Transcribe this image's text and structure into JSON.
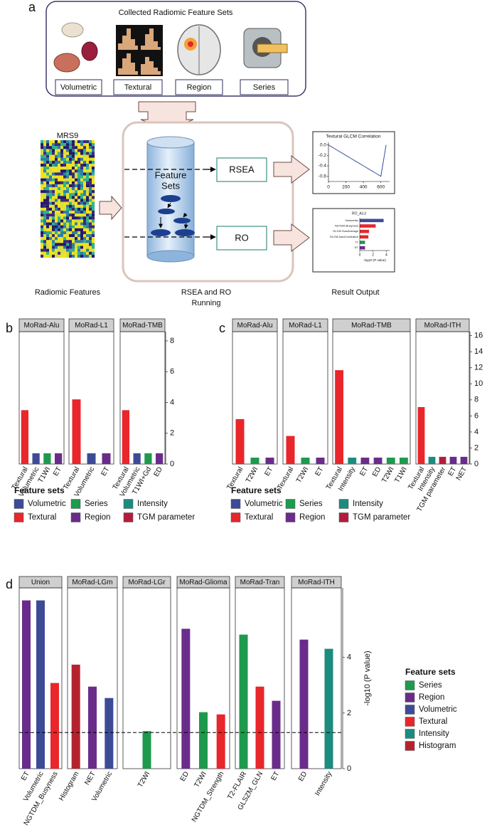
{
  "panel_a": {
    "label": "a",
    "title": "Collected Radiomic Feature Sets",
    "feature_sets": [
      "Volumetric",
      "Textural",
      "Region",
      "Series"
    ],
    "heatmap_title": "MRS9",
    "cylinder_label": [
      "Feature",
      "Sets"
    ],
    "methods": [
      "RSEA",
      "RO"
    ],
    "captions": {
      "features": "Radiomic Features",
      "running": [
        "RSEA and RO",
        "Running"
      ],
      "output": "Result Output"
    }
  },
  "chart_data": [
    {
      "type": "line",
      "title": "Textural GLCM Correlation",
      "x": [
        0,
        50,
        100,
        150,
        200,
        250,
        300,
        350,
        400,
        450,
        500,
        550,
        600,
        620,
        640,
        660
      ],
      "y": [
        0,
        -0.05,
        -0.1,
        -0.15,
        -0.2,
        -0.25,
        -0.3,
        -0.35,
        -0.4,
        -0.45,
        -0.5,
        -0.55,
        -0.6,
        -0.4,
        -0.2,
        0
      ],
      "color": "#3a4ea0",
      "xlim": [
        0,
        700
      ],
      "xticks": [
        0,
        200,
        400,
        600
      ],
      "ylim": [
        -0.7,
        0.05
      ],
      "yticks": [
        {
          "value": 0,
          "label": "0.0"
        },
        -0.2,
        -0.4,
        -0.6
      ]
    },
    {
      "type": "bar",
      "orientation": "horizontal",
      "title": "RO_ALU",
      "categories": [
        "Volumetric",
        "NGTDM Busyness",
        "GLCM SumAverage",
        "GLCM AutoCorrelation",
        "T1",
        "ET"
      ],
      "values": [
        3.6,
        2.4,
        1.4,
        1.3,
        0.8,
        0.8
      ],
      "colors": [
        "#3d4b97",
        "#e8262b",
        "#e8262b",
        "#e8262b",
        "#1e9a4d",
        "#6a2c8a"
      ],
      "xlim": [
        0,
        4.5
      ],
      "xticks": [
        0,
        2,
        4
      ],
      "xlabel": "-log10 (P value)"
    },
    {
      "type": "bar",
      "label": "b",
      "facets": [
        {
          "title": "MoRad-Alu",
          "categories": [
            "Textural",
            "Volumetric",
            "T1WI",
            "ET"
          ],
          "values": [
            3.5,
            0.7,
            0.7,
            0.7
          ],
          "colors": [
            "#e8262b",
            "#3d4b97",
            "#1e9a4d",
            "#6a2c8a"
          ]
        },
        {
          "title": "MoRad-L1",
          "categories": [
            "Textural",
            "Volumetric",
            "ET"
          ],
          "values": [
            4.2,
            0.7,
            0.7
          ],
          "colors": [
            "#e8262b",
            "#3d4b97",
            "#6a2c8a"
          ]
        },
        {
          "title": "MoRad-TMB",
          "categories": [
            "Textural",
            "Volumetric",
            "T1WI+Gd",
            "ED"
          ],
          "values": [
            3.5,
            0.7,
            0.7,
            0.7
          ],
          "colors": [
            "#e8262b",
            "#3d4b97",
            "#1e9a4d",
            "#6a2c8a"
          ]
        }
      ],
      "ylim": [
        0,
        8.6
      ],
      "yticks": [
        0,
        2,
        4,
        6,
        8
      ],
      "legend": {
        "title": "Feature sets",
        "items": [
          {
            "name": "Volumetric",
            "color": "#3d4b97"
          },
          {
            "name": "Series",
            "color": "#1e9a4d"
          },
          {
            "name": "Intensity",
            "color": "#1b8c7f"
          },
          {
            "name": "Textural",
            "color": "#e8262b"
          },
          {
            "name": "Region",
            "color": "#6a2c8a"
          },
          {
            "name": "TGM parameter",
            "color": "#b31d3b"
          }
        ]
      }
    },
    {
      "type": "bar",
      "label": "c",
      "facets": [
        {
          "title": "MoRad-Alu",
          "categories": [
            "Textural",
            "T2WI",
            "ET"
          ],
          "values": [
            5.6,
            0.8,
            0.8
          ],
          "colors": [
            "#e8262b",
            "#1e9a4d",
            "#6a2c8a"
          ]
        },
        {
          "title": "MoRad-L1",
          "categories": [
            "Textural",
            "T2WI",
            "ET"
          ],
          "values": [
            3.5,
            0.8,
            0.8
          ],
          "colors": [
            "#e8262b",
            "#1e9a4d",
            "#6a2c8a"
          ]
        },
        {
          "title": "MoRad-TMB",
          "categories": [
            "Textural",
            "Intensity",
            "ET",
            "ED",
            "T2WI",
            "T1WI"
          ],
          "values": [
            11.7,
            0.8,
            0.8,
            0.8,
            0.8,
            0.8
          ],
          "colors": [
            "#e8262b",
            "#1b8c7f",
            "#6a2c8a",
            "#6a2c8a",
            "#1e9a4d",
            "#1e9a4d"
          ]
        },
        {
          "title": "MoRad-ITH",
          "categories": [
            "Textural",
            "Intensity",
            "TGM parameter",
            "ET",
            "NET"
          ],
          "values": [
            7.1,
            0.9,
            0.9,
            0.9,
            0.9
          ],
          "colors": [
            "#e8262b",
            "#1b8c7f",
            "#b31d3b",
            "#6a2c8a",
            "#6a2c8a"
          ]
        }
      ],
      "ylim": [
        0,
        16.5
      ],
      "yticks": [
        0,
        2,
        4,
        6,
        8,
        10,
        12,
        14,
        16
      ],
      "legend": {
        "title": "Feature sets",
        "items": [
          {
            "name": "Volumetric",
            "color": "#3d4b97"
          },
          {
            "name": "Series",
            "color": "#1e9a4d"
          },
          {
            "name": "Intensity",
            "color": "#1b8c7f"
          },
          {
            "name": "Textural",
            "color": "#e8262b"
          },
          {
            "name": "Region",
            "color": "#6a2c8a"
          },
          {
            "name": "TGM parameter",
            "color": "#b31d3b"
          }
        ]
      }
    },
    {
      "type": "bar",
      "label": "d",
      "ylabel": "-log10 (P value)",
      "threshold": 1.3,
      "facets": [
        {
          "title": "Union",
          "categories": [
            "ET",
            "Volumetric",
            "NGTDM_Busyness"
          ],
          "values": [
            6.05,
            6.05,
            3.08
          ],
          "colors": [
            "#6a2c8a",
            "#3d4b97",
            "#e8262b"
          ]
        },
        {
          "title": "MoRad-LGm",
          "categories": [
            "Histogram",
            "NET",
            "Volumetric"
          ],
          "values": [
            3.74,
            2.95,
            2.54
          ],
          "colors": [
            "#b5222e",
            "#6a2c8a",
            "#3d4b97"
          ]
        },
        {
          "title": "MoRad-LGr",
          "categories": [
            "T2WI"
          ],
          "values": [
            1.35
          ],
          "colors": [
            "#1e9a4d"
          ]
        },
        {
          "title": "MoRad-Glioma",
          "categories": [
            "ED",
            "T2WI",
            "NGTDM_Strength"
          ],
          "values": [
            5.03,
            2.03,
            1.95
          ],
          "colors": [
            "#6a2c8a",
            "#1e9a4d",
            "#e8262b"
          ]
        },
        {
          "title": "MoRad-Tran",
          "categories": [
            "T2-FLAIR",
            "GLSZM_GLN",
            "ET"
          ],
          "values": [
            4.82,
            2.95,
            2.44
          ],
          "colors": [
            "#1e9a4d",
            "#e8262b",
            "#6a2c8a"
          ]
        },
        {
          "title": "MoRad-ITH",
          "categories": [
            "ED",
            "Intensity"
          ],
          "values": [
            4.64,
            4.31
          ],
          "colors": [
            "#6a2c8a",
            "#1b8c7f"
          ]
        }
      ],
      "ylim": [
        0,
        6.5
      ],
      "yticks": [
        0,
        2,
        4
      ],
      "legend": {
        "title": "Feature sets",
        "items": [
          {
            "name": "Series",
            "color": "#1e9a4d"
          },
          {
            "name": "Region",
            "color": "#6a2c8a"
          },
          {
            "name": "Volumetric",
            "color": "#3d4b97"
          },
          {
            "name": "Textural",
            "color": "#e8262b"
          },
          {
            "name": "Intensity",
            "color": "#1b8c7f"
          },
          {
            "name": "Histogram",
            "color": "#b5222e"
          }
        ]
      }
    }
  ]
}
